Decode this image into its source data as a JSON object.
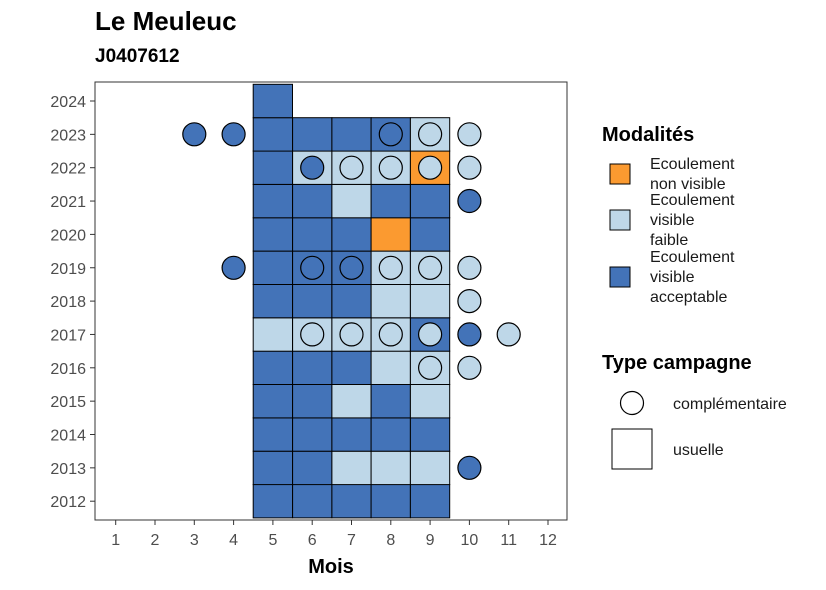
{
  "title": "Le Meuleuc",
  "subtitle": "J0407612",
  "chart_data": {
    "type": "heatmap",
    "xlabel": "Mois",
    "ylabel": "",
    "x_ticks": [
      "1",
      "2",
      "3",
      "4",
      "5",
      "6",
      "7",
      "8",
      "9",
      "10",
      "11",
      "12"
    ],
    "y_ticks": [
      "2012",
      "2013",
      "2014",
      "2015",
      "2016",
      "2017",
      "2018",
      "2019",
      "2020",
      "2021",
      "2022",
      "2023",
      "2024"
    ],
    "xlim": [
      0.5,
      12.5
    ],
    "ylim": [
      2011.5,
      2024.5
    ],
    "grid": false,
    "legend_position": "right",
    "categories": {
      "acceptable": {
        "label": "Ecoulement visible acceptable",
        "lines": [
          "Ecoulement",
          "visible",
          "acceptable"
        ],
        "color": "#4373b8"
      },
      "faible": {
        "label": "Ecoulement visible faible",
        "lines": [
          "Ecoulement",
          "visible",
          "faible"
        ],
        "color": "#bed7e8"
      },
      "non_visible": {
        "label": "Ecoulement non visible",
        "lines": [
          "Ecoulement",
          "non visible"
        ],
        "color": "#fb9a30"
      }
    },
    "legend_fill_title": "Modalités",
    "legend_fill_order": [
      "non_visible",
      "faible",
      "acceptable"
    ],
    "legend_shape_title": "Type campagne",
    "shape_types": [
      {
        "key": "complementaire",
        "label": "complémentaire",
        "shape": "circle"
      },
      {
        "key": "usuelle",
        "label": "usuelle",
        "shape": "square"
      }
    ],
    "usuelle": [
      {
        "year": 2012,
        "month": 5,
        "v": "acceptable"
      },
      {
        "year": 2012,
        "month": 6,
        "v": "acceptable"
      },
      {
        "year": 2012,
        "month": 7,
        "v": "acceptable"
      },
      {
        "year": 2012,
        "month": 8,
        "v": "acceptable"
      },
      {
        "year": 2012,
        "month": 9,
        "v": "acceptable"
      },
      {
        "year": 2013,
        "month": 5,
        "v": "acceptable"
      },
      {
        "year": 2013,
        "month": 6,
        "v": "acceptable"
      },
      {
        "year": 2013,
        "month": 7,
        "v": "faible"
      },
      {
        "year": 2013,
        "month": 8,
        "v": "faible"
      },
      {
        "year": 2013,
        "month": 9,
        "v": "faible"
      },
      {
        "year": 2014,
        "month": 5,
        "v": "acceptable"
      },
      {
        "year": 2014,
        "month": 6,
        "v": "acceptable"
      },
      {
        "year": 2014,
        "month": 7,
        "v": "acceptable"
      },
      {
        "year": 2014,
        "month": 8,
        "v": "acceptable"
      },
      {
        "year": 2014,
        "month": 9,
        "v": "acceptable"
      },
      {
        "year": 2015,
        "month": 5,
        "v": "acceptable"
      },
      {
        "year": 2015,
        "month": 6,
        "v": "acceptable"
      },
      {
        "year": 2015,
        "month": 7,
        "v": "faible"
      },
      {
        "year": 2015,
        "month": 8,
        "v": "acceptable"
      },
      {
        "year": 2015,
        "month": 9,
        "v": "faible"
      },
      {
        "year": 2016,
        "month": 5,
        "v": "acceptable"
      },
      {
        "year": 2016,
        "month": 6,
        "v": "acceptable"
      },
      {
        "year": 2016,
        "month": 7,
        "v": "acceptable"
      },
      {
        "year": 2016,
        "month": 8,
        "v": "faible"
      },
      {
        "year": 2016,
        "month": 9,
        "v": "faible"
      },
      {
        "year": 2017,
        "month": 5,
        "v": "faible"
      },
      {
        "year": 2017,
        "month": 6,
        "v": "faible"
      },
      {
        "year": 2017,
        "month": 7,
        "v": "faible"
      },
      {
        "year": 2017,
        "month": 8,
        "v": "faible"
      },
      {
        "year": 2017,
        "month": 9,
        "v": "acceptable"
      },
      {
        "year": 2018,
        "month": 5,
        "v": "acceptable"
      },
      {
        "year": 2018,
        "month": 6,
        "v": "acceptable"
      },
      {
        "year": 2018,
        "month": 7,
        "v": "acceptable"
      },
      {
        "year": 2018,
        "month": 8,
        "v": "faible"
      },
      {
        "year": 2018,
        "month": 9,
        "v": "faible"
      },
      {
        "year": 2019,
        "month": 5,
        "v": "acceptable"
      },
      {
        "year": 2019,
        "month": 6,
        "v": "acceptable"
      },
      {
        "year": 2019,
        "month": 7,
        "v": "acceptable"
      },
      {
        "year": 2019,
        "month": 8,
        "v": "faible"
      },
      {
        "year": 2019,
        "month": 9,
        "v": "faible"
      },
      {
        "year": 2020,
        "month": 5,
        "v": "acceptable"
      },
      {
        "year": 2020,
        "month": 6,
        "v": "acceptable"
      },
      {
        "year": 2020,
        "month": 7,
        "v": "acceptable"
      },
      {
        "year": 2020,
        "month": 8,
        "v": "non_visible"
      },
      {
        "year": 2020,
        "month": 9,
        "v": "acceptable"
      },
      {
        "year": 2021,
        "month": 5,
        "v": "acceptable"
      },
      {
        "year": 2021,
        "month": 6,
        "v": "acceptable"
      },
      {
        "year": 2021,
        "month": 7,
        "v": "faible"
      },
      {
        "year": 2021,
        "month": 8,
        "v": "acceptable"
      },
      {
        "year": 2021,
        "month": 9,
        "v": "acceptable"
      },
      {
        "year": 2022,
        "month": 5,
        "v": "acceptable"
      },
      {
        "year": 2022,
        "month": 6,
        "v": "faible"
      },
      {
        "year": 2022,
        "month": 7,
        "v": "faible"
      },
      {
        "year": 2022,
        "month": 8,
        "v": "faible"
      },
      {
        "year": 2022,
        "month": 9,
        "v": "non_visible"
      },
      {
        "year": 2023,
        "month": 5,
        "v": "acceptable"
      },
      {
        "year": 2023,
        "month": 6,
        "v": "acceptable"
      },
      {
        "year": 2023,
        "month": 7,
        "v": "acceptable"
      },
      {
        "year": 2023,
        "month": 8,
        "v": "acceptable"
      },
      {
        "year": 2023,
        "month": 9,
        "v": "faible"
      },
      {
        "year": 2024,
        "month": 5,
        "v": "acceptable"
      }
    ],
    "complementaire": [
      {
        "year": 2013,
        "month": 10,
        "v": "acceptable"
      },
      {
        "year": 2016,
        "month": 9,
        "v": "faible"
      },
      {
        "year": 2016,
        "month": 10,
        "v": "faible"
      },
      {
        "year": 2017,
        "month": 6,
        "v": "faible"
      },
      {
        "year": 2017,
        "month": 7,
        "v": "faible"
      },
      {
        "year": 2017,
        "month": 8,
        "v": "faible"
      },
      {
        "year": 2017,
        "month": 9,
        "v": "faible"
      },
      {
        "year": 2017,
        "month": 10,
        "v": "acceptable"
      },
      {
        "year": 2017,
        "month": 11,
        "v": "faible"
      },
      {
        "year": 2018,
        "month": 10,
        "v": "faible"
      },
      {
        "year": 2019,
        "month": 4,
        "v": "acceptable"
      },
      {
        "year": 2019,
        "month": 6,
        "v": "acceptable"
      },
      {
        "year": 2019,
        "month": 7,
        "v": "acceptable"
      },
      {
        "year": 2019,
        "month": 8,
        "v": "faible"
      },
      {
        "year": 2019,
        "month": 9,
        "v": "faible"
      },
      {
        "year": 2019,
        "month": 10,
        "v": "faible"
      },
      {
        "year": 2021,
        "month": 10,
        "v": "acceptable"
      },
      {
        "year": 2022,
        "month": 6,
        "v": "acceptable"
      },
      {
        "year": 2022,
        "month": 7,
        "v": "faible"
      },
      {
        "year": 2022,
        "month": 8,
        "v": "faible"
      },
      {
        "year": 2022,
        "month": 9,
        "v": "faible"
      },
      {
        "year": 2022,
        "month": 10,
        "v": "faible"
      },
      {
        "year": 2023,
        "month": 3,
        "v": "acceptable"
      },
      {
        "year": 2023,
        "month": 4,
        "v": "acceptable"
      },
      {
        "year": 2023,
        "month": 8,
        "v": "acceptable"
      },
      {
        "year": 2023,
        "month": 9,
        "v": "faible"
      },
      {
        "year": 2023,
        "month": 10,
        "v": "faible"
      }
    ]
  }
}
